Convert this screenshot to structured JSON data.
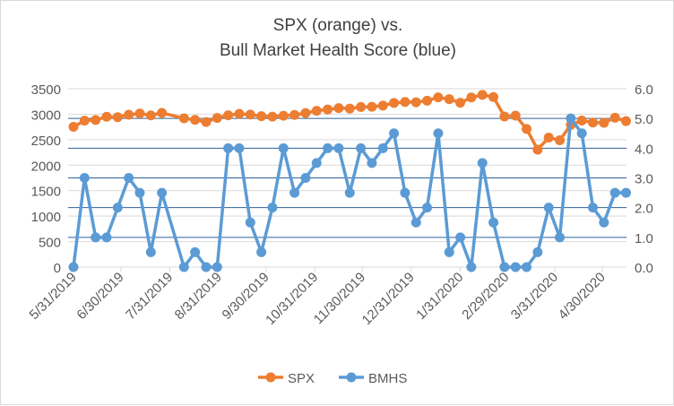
{
  "chart_data": {
    "type": "line",
    "title": [
      "SPX (orange) vs.",
      "Bull Market Health Score (blue)"
    ],
    "x_ticks": [
      "5/31/2019",
      "6/30/2019",
      "7/31/2019",
      "8/31/2019",
      "9/30/2019",
      "10/31/2019",
      "11/30/2019",
      "12/31/2019",
      "1/31/2020",
      "2/29/2020",
      "3/31/2020",
      "4/30/2020"
    ],
    "y_left": {
      "min": 0,
      "max": 3500,
      "step": 500,
      "ticks": [
        "0",
        "500",
        "1000",
        "1500",
        "2000",
        "2500",
        "3000",
        "3500"
      ]
    },
    "y_right": {
      "min": 0,
      "max": 6,
      "step": 1,
      "ticks": [
        "0.0",
        "1.0",
        "2.0",
        "3.0",
        "4.0",
        "5.0",
        "6.0"
      ]
    },
    "x": [
      "2019-05-31",
      "2019-06-07",
      "2019-06-14",
      "2019-06-21",
      "2019-06-28",
      "2019-07-05",
      "2019-07-12",
      "2019-07-19",
      "2019-07-26",
      "2019-08-09",
      "2019-08-16",
      "2019-08-23",
      "2019-08-30",
      "2019-09-06",
      "2019-09-13",
      "2019-09-20",
      "2019-09-27",
      "2019-10-04",
      "2019-10-11",
      "2019-10-18",
      "2019-10-25",
      "2019-11-01",
      "2019-11-08",
      "2019-11-15",
      "2019-11-22",
      "2019-11-29",
      "2019-12-06",
      "2019-12-13",
      "2019-12-20",
      "2019-12-27",
      "2020-01-03",
      "2020-01-10",
      "2020-01-17",
      "2020-01-24",
      "2020-01-31",
      "2020-02-07",
      "2020-02-14",
      "2020-02-21",
      "2020-02-28",
      "2020-03-06",
      "2020-03-13",
      "2020-03-20",
      "2020-03-27",
      "2020-04-03",
      "2020-04-10",
      "2020-04-17",
      "2020-04-24",
      "2020-05-01",
      "2020-05-08",
      "2020-05-15"
    ],
    "series": [
      {
        "name": "SPX",
        "axis": "left",
        "color": "#ed7d31",
        "values": [
          2752,
          2873,
          2887,
          2950,
          2942,
          2990,
          3014,
          2977,
          3026,
          2919,
          2889,
          2847,
          2926,
          2979,
          3007,
          2992,
          2962,
          2952,
          2970,
          2986,
          3023,
          3067,
          3093,
          3120,
          3110,
          3141,
          3146,
          3169,
          3221,
          3240,
          3235,
          3265,
          3330,
          3295,
          3225,
          3328,
          3380,
          3338,
          2954,
          2972,
          2711,
          2305,
          2541,
          2489,
          2790,
          2875,
          2837,
          2831,
          2930,
          2864
        ]
      },
      {
        "name": "BMHS",
        "axis": "right",
        "color": "#5b9bd5",
        "values": [
          0,
          3,
          1,
          1,
          2,
          3,
          2.5,
          0.5,
          2.5,
          0,
          0.5,
          0,
          0,
          4,
          4,
          1.5,
          0.5,
          2,
          4,
          2.5,
          3,
          3.5,
          4,
          4,
          2.5,
          4,
          3.5,
          4,
          4.5,
          2.5,
          1.5,
          2,
          4.5,
          0.5,
          1,
          0,
          3.5,
          1.5,
          0,
          0,
          0,
          0.5,
          2,
          1,
          5,
          4.5,
          2,
          1.5,
          2.5,
          2.5
        ]
      }
    ],
    "legend": "bottom",
    "grid": true
  }
}
